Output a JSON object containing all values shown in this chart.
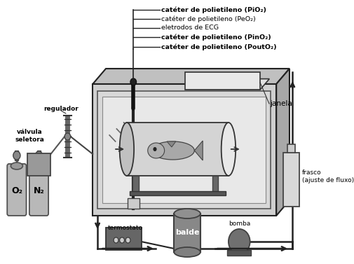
{
  "bg_color": "#ffffff",
  "fig_width": 5.05,
  "fig_height": 3.77,
  "dpi": 100,
  "labels": {
    "catheter1": "catéter de polietileno (PiO₂)",
    "catheter2": "catéter de polietileno (PeO₂)",
    "eletrodos": "eletrodos de ECG",
    "catheter3": "catéter de polietileno (PinO₂)",
    "catheter4": "catéter de polietileno (PoutO₂)",
    "janela": "janela",
    "regulador": "regulador",
    "valvula": "válvula\nseletora",
    "O2": "O₂",
    "N2": "N₂",
    "termostato": "termostato",
    "balde": "balde",
    "bomba": "bomba",
    "frasco": "frasco\n(ajuste de fluxo)"
  },
  "c_gray1": "#b8b8b8",
  "c_gray2": "#d0d0d0",
  "c_gray3": "#e8e8e8",
  "c_gray4": "#a0a0a0",
  "c_dark": "#333333",
  "c_black": "#111111"
}
